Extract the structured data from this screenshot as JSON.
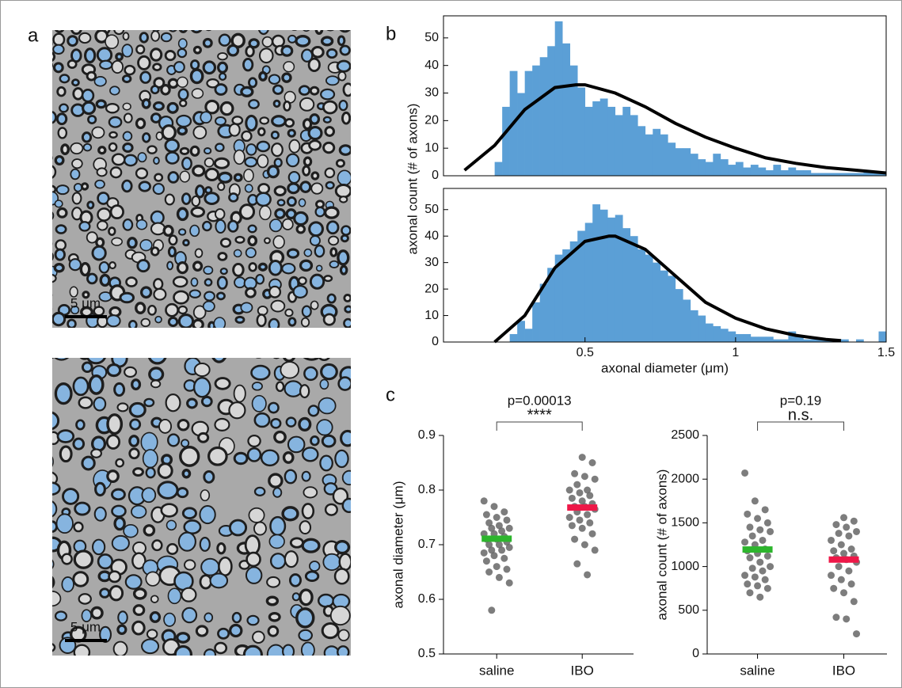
{
  "panel_labels": [
    "a",
    "b",
    "c"
  ],
  "scale_bars": [
    "5 μm",
    "5 μm"
  ],
  "chart_data": [
    {
      "type": "histogram",
      "color": "#5b9fd6",
      "ylabel": "axonal count (# of axons)",
      "bins": [
        0.2,
        0.225,
        0.25,
        0.275,
        0.3,
        0.325,
        0.35,
        0.375,
        0.4,
        0.425,
        0.45,
        0.475,
        0.5,
        0.525,
        0.55,
        0.575,
        0.6,
        0.625,
        0.65,
        0.675,
        0.7,
        0.725,
        0.75,
        0.775,
        0.8,
        0.825,
        0.85,
        0.875,
        0.9,
        0.925,
        0.95,
        0.975,
        1.0,
        1.025,
        1.05,
        1.075,
        1.1,
        1.125,
        1.15,
        1.175,
        1.2,
        1.225,
        1.25,
        1.275,
        1.3,
        1.325,
        1.35,
        1.375,
        1.4,
        1.425,
        1.45,
        1.475,
        1.5
      ],
      "values": [
        5,
        25,
        38,
        30,
        38,
        40,
        43,
        47,
        56,
        48,
        40,
        32,
        25,
        27,
        28,
        25,
        22,
        25,
        22,
        18,
        15,
        17,
        15,
        12,
        10,
        10,
        8,
        6,
        5,
        8,
        6,
        4,
        5,
        3,
        4,
        3,
        2,
        4,
        2,
        3,
        2,
        2,
        1,
        1,
        1,
        1,
        1,
        1,
        1,
        2,
        1,
        1
      ],
      "fit": {
        "color": "#000000",
        "x": [
          0.1,
          0.2,
          0.3,
          0.4,
          0.47,
          0.5,
          0.6,
          0.7,
          0.8,
          0.9,
          1.0,
          1.1,
          1.2,
          1.3,
          1.4,
          1.5
        ],
        "values": [
          2,
          11,
          24,
          32,
          33,
          33,
          30,
          25,
          19,
          14,
          10,
          6.5,
          4.5,
          3,
          2,
          1
        ]
      },
      "xlim": [
        0.03,
        1.5
      ],
      "ylim": [
        0,
        58
      ],
      "yticks": [
        0,
        10,
        20,
        30,
        40,
        50
      ]
    },
    {
      "type": "histogram",
      "color": "#5b9fd6",
      "xlabel": "axonal diameter (μm)",
      "bins": [
        0.2,
        0.225,
        0.25,
        0.275,
        0.3,
        0.325,
        0.35,
        0.375,
        0.4,
        0.425,
        0.45,
        0.475,
        0.5,
        0.525,
        0.55,
        0.575,
        0.6,
        0.625,
        0.65,
        0.675,
        0.7,
        0.725,
        0.75,
        0.775,
        0.8,
        0.825,
        0.85,
        0.875,
        0.9,
        0.925,
        0.95,
        0.975,
        1.0,
        1.025,
        1.05,
        1.075,
        1.1,
        1.125,
        1.15,
        1.175,
        1.2,
        1.225,
        1.25,
        1.275,
        1.3,
        1.325,
        1.35,
        1.375,
        1.4,
        1.425,
        1.45,
        1.475,
        1.5
      ],
      "values": [
        0,
        0,
        3,
        8,
        5,
        15,
        22,
        28,
        33,
        35,
        38,
        42,
        45,
        52,
        50,
        47,
        48,
        43,
        40,
        35,
        33,
        30,
        27,
        25,
        20,
        16,
        12,
        10,
        7,
        6,
        5,
        4,
        3,
        3,
        2,
        2,
        2,
        1,
        1,
        4,
        2,
        1,
        1,
        1,
        1,
        1,
        1,
        0,
        1,
        0,
        0,
        4
      ],
      "fit": {
        "color": "#000000",
        "x": [
          0.2,
          0.3,
          0.4,
          0.5,
          0.58,
          0.6,
          0.7,
          0.8,
          0.9,
          1.0,
          1.1,
          1.2,
          1.3,
          1.35
        ],
        "values": [
          0,
          10,
          28,
          38,
          40,
          40,
          35,
          25,
          15,
          9,
          5,
          2.5,
          1,
          0.5
        ]
      },
      "xlim": [
        0.03,
        1.5
      ],
      "ylim": [
        0,
        58
      ],
      "yticks": [
        0,
        10,
        20,
        30,
        40,
        50
      ],
      "xticks": [
        0.5,
        1,
        1.5
      ]
    },
    {
      "type": "strip",
      "ylabel": "axonal diameter (μm)",
      "categories": [
        "saline",
        "IBO"
      ],
      "point_color": "#666666",
      "values": [
        [
          0.78,
          0.77,
          0.76,
          0.755,
          0.75,
          0.745,
          0.74,
          0.735,
          0.73,
          0.73,
          0.725,
          0.72,
          0.72,
          0.715,
          0.71,
          0.71,
          0.705,
          0.7,
          0.7,
          0.695,
          0.69,
          0.69,
          0.685,
          0.68,
          0.675,
          0.67,
          0.66,
          0.655,
          0.65,
          0.64,
          0.63,
          0.58
        ],
        [
          0.86,
          0.85,
          0.83,
          0.825,
          0.82,
          0.81,
          0.8,
          0.8,
          0.795,
          0.79,
          0.785,
          0.78,
          0.775,
          0.77,
          0.77,
          0.765,
          0.76,
          0.755,
          0.75,
          0.745,
          0.74,
          0.735,
          0.73,
          0.72,
          0.71,
          0.7,
          0.69,
          0.665,
          0.645
        ]
      ],
      "means": [
        0.711,
        0.768
      ],
      "mean_colors": [
        "#2db52d",
        "#ee1848"
      ],
      "annotations": [
        "p=0.00013",
        "****"
      ],
      "ylim": [
        0.5,
        0.9
      ],
      "yticks": [
        0.5,
        0.6,
        0.7,
        0.8,
        0.9
      ]
    },
    {
      "type": "strip",
      "ylabel": "axonal count (# of axons)",
      "categories": [
        "saline",
        "IBO"
      ],
      "point_color": "#666666",
      "values": [
        [
          2070,
          1750,
          1650,
          1600,
          1550,
          1500,
          1450,
          1420,
          1400,
          1350,
          1300,
          1280,
          1250,
          1200,
          1180,
          1150,
          1120,
          1100,
          1050,
          1000,
          980,
          950,
          900,
          880,
          850,
          800,
          780,
          750,
          700,
          650
        ],
        [
          1560,
          1520,
          1480,
          1450,
          1400,
          1380,
          1350,
          1300,
          1250,
          1200,
          1180,
          1150,
          1120,
          1100,
          1080,
          1050,
          1000,
          950,
          900,
          850,
          800,
          750,
          700,
          600,
          420,
          400,
          230
        ]
      ],
      "means": [
        1195,
        1080
      ],
      "mean_colors": [
        "#2db52d",
        "#ee1848"
      ],
      "annotations": [
        "p=0.19",
        "n.s."
      ],
      "ylim": [
        0,
        2500
      ],
      "yticks": [
        0,
        500,
        1000,
        1500,
        2000,
        2500
      ]
    }
  ]
}
